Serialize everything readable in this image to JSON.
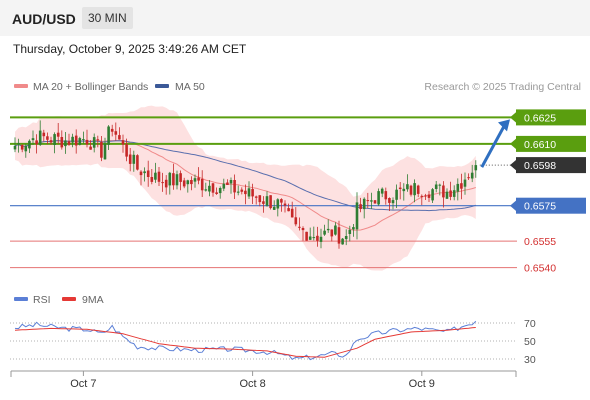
{
  "header": {
    "symbol": "AUD/USD",
    "timeframe": "30 MIN"
  },
  "datetime": "Thursday, October 9, 2025 3:49:26 AM CET",
  "legend": {
    "bb_label": "MA 20 + Bollinger Bands",
    "ma50_label": "MA 50",
    "credit": "Research © 2025 Trading Central"
  },
  "rsi_legend": {
    "rsi_label": "RSI",
    "ma9_label": "9MA"
  },
  "colors": {
    "candle_up": "#2e7d32",
    "candle_down": "#c62828",
    "ma20": "#f08a8a",
    "bb_fill": "#fde1e1",
    "ma50": "#5a6fae",
    "resistance": "#5a9e0f",
    "support_red": "#e57373",
    "pivot": "#4472c4",
    "current": "#333333",
    "rsi_line": "#5b7fd6",
    "rsi_ma": "#e53935",
    "arrow": "#2f6fc0"
  },
  "chart_data": {
    "type": "candlestick",
    "price_range": [
      0.6529,
      0.6636
    ],
    "x_labels": [
      "Oct 7",
      "Oct 8",
      "Oct 9"
    ],
    "levels": [
      {
        "label": "0.6625",
        "value": 0.6625,
        "kind": "resistance"
      },
      {
        "label": "0.6610",
        "value": 0.661,
        "kind": "resistance"
      },
      {
        "label": "0.6598",
        "value": 0.6598,
        "kind": "current"
      },
      {
        "label": "0.6575",
        "value": 0.6575,
        "kind": "pivot"
      },
      {
        "label": "0.6555",
        "value": 0.6555,
        "kind": "support"
      },
      {
        "label": "0.6540",
        "value": 0.654,
        "kind": "support"
      }
    ],
    "close_anchors": [
      [
        0,
        0.6609
      ],
      [
        6,
        0.6614
      ],
      [
        14,
        0.6612
      ],
      [
        20,
        0.6613
      ],
      [
        24,
        0.6606
      ],
      [
        27,
        0.662
      ],
      [
        30,
        0.6608
      ],
      [
        34,
        0.6596
      ],
      [
        40,
        0.659
      ],
      [
        50,
        0.6588
      ],
      [
        60,
        0.6585
      ],
      [
        70,
        0.6578
      ],
      [
        73,
        0.6576
      ],
      [
        78,
        0.6562
      ],
      [
        84,
        0.6558
      ],
      [
        88,
        0.656
      ],
      [
        92,
        0.6557
      ],
      [
        95,
        0.6572
      ],
      [
        100,
        0.658
      ],
      [
        106,
        0.6582
      ],
      [
        112,
        0.6585
      ],
      [
        120,
        0.6583
      ],
      [
        124,
        0.6589
      ],
      [
        128,
        0.6598
      ]
    ],
    "rsi": {
      "levels": [
        70,
        50,
        30
      ],
      "range": [
        20,
        80
      ],
      "rsi_anchors": [
        [
          0,
          65
        ],
        [
          6,
          68
        ],
        [
          14,
          64
        ],
        [
          20,
          63
        ],
        [
          24,
          58
        ],
        [
          27,
          66
        ],
        [
          30,
          55
        ],
        [
          34,
          44
        ],
        [
          40,
          42
        ],
        [
          50,
          40
        ],
        [
          60,
          41
        ],
        [
          70,
          38
        ],
        [
          73,
          36
        ],
        [
          78,
          30
        ],
        [
          84,
          33
        ],
        [
          88,
          36
        ],
        [
          92,
          34
        ],
        [
          95,
          52
        ],
        [
          100,
          58
        ],
        [
          106,
          62
        ],
        [
          112,
          64
        ],
        [
          120,
          60
        ],
        [
          124,
          66
        ],
        [
          128,
          72
        ]
      ],
      "ma9_anchors": [
        [
          0,
          62
        ],
        [
          10,
          64
        ],
        [
          20,
          63
        ],
        [
          30,
          58
        ],
        [
          40,
          47
        ],
        [
          50,
          42
        ],
        [
          60,
          41
        ],
        [
          70,
          39
        ],
        [
          78,
          33
        ],
        [
          86,
          32
        ],
        [
          95,
          42
        ],
        [
          100,
          52
        ],
        [
          110,
          60
        ],
        [
          120,
          62
        ],
        [
          128,
          65
        ]
      ]
    }
  }
}
